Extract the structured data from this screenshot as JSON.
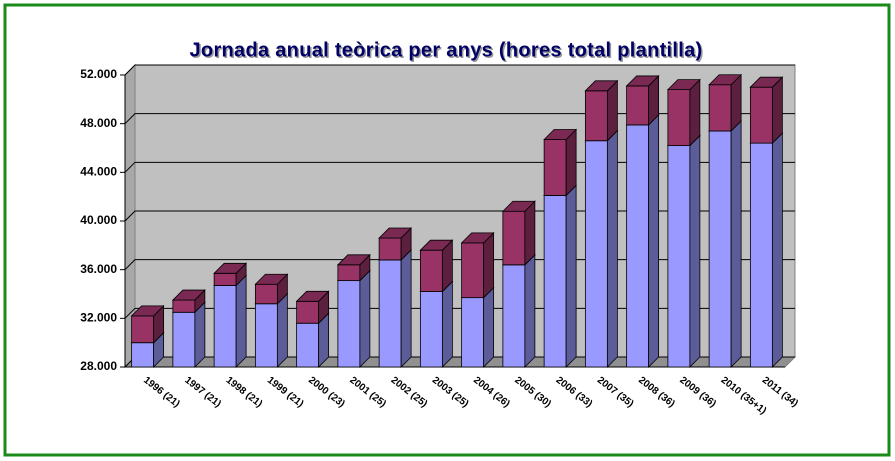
{
  "chart_data": {
    "type": "bar3d_stacked",
    "title": "Jornada anual teòrica per anys (hores total plantilla)",
    "categories": [
      "1996 (21)",
      "1997 (21)",
      "1998 (21)",
      "1999 (21)",
      "2000 (23)",
      "2001 (25)",
      "2002 (25)",
      "2003 (25)",
      "2004 (26)",
      "2005 (30)",
      "2006 (33)",
      "2007 (35)",
      "2008 (36)",
      "2009 (36)",
      "2010 (35+1)",
      "2011 (34)"
    ],
    "series": [
      {
        "color": "#9999ff",
        "values": [
          30000,
          32500,
          34700,
          33200,
          31600,
          35100,
          36800,
          34200,
          33700,
          36400,
          42100,
          46600,
          47900,
          46200,
          47400,
          46400
        ]
      },
      {
        "color": "#993366",
        "values": [
          2200,
          1000,
          1000,
          1600,
          1800,
          1300,
          1800,
          3400,
          4500,
          4400,
          4600,
          4100,
          3200,
          4600,
          3800,
          4600
        ]
      }
    ],
    "ylim": [
      28000,
      52000
    ],
    "yticks": [
      {
        "value": 28000,
        "label": "28.000"
      },
      {
        "value": 32000,
        "label": "32.000"
      },
      {
        "value": 36000,
        "label": "36.000"
      },
      {
        "value": 40000,
        "label": "40.000"
      },
      {
        "value": 44000,
        "label": "44.000"
      },
      {
        "value": 48000,
        "label": "48.000"
      },
      {
        "value": 52000,
        "label": "52.000"
      }
    ],
    "grid": true
  }
}
